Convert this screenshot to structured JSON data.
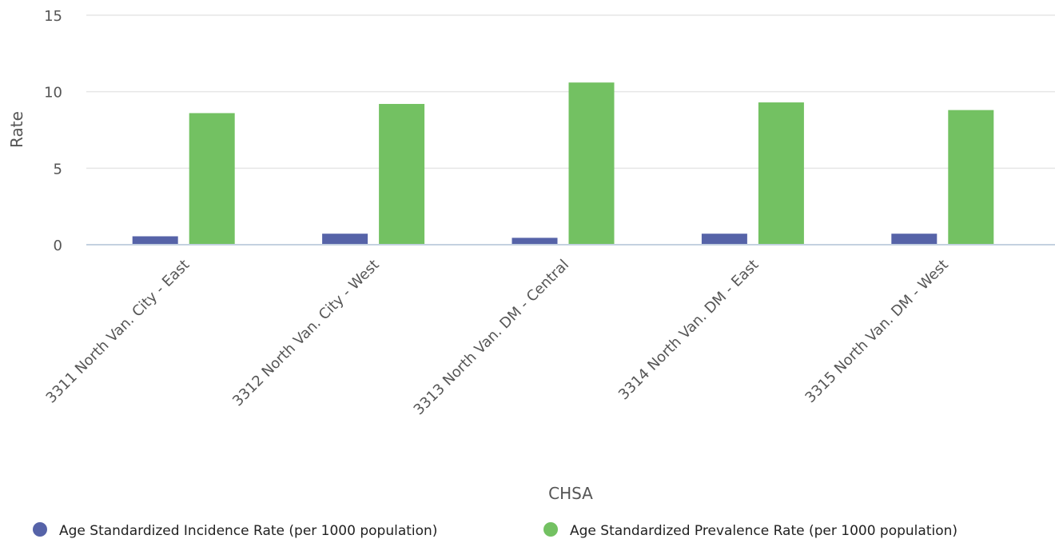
{
  "chart_data": {
    "type": "bar",
    "title": "",
    "xlabel": "CHSA",
    "ylabel": "Rate",
    "ylim": [
      0,
      15
    ],
    "yticks": [
      0,
      5,
      10,
      15
    ],
    "grid": true,
    "legend_position": "bottom",
    "categories": [
      "3311 North Van. City - East",
      "3312 North Van. City - West",
      "3313 North Van. DM - Central",
      "3314 North Van. DM - East",
      "3315 North Van. DM - West"
    ],
    "series": [
      {
        "name": "Age Standardized Incidence Rate (per 1000 population)",
        "color": "#5663a8",
        "values": [
          0.55,
          0.72,
          0.45,
          0.72,
          0.72
        ]
      },
      {
        "name": "Age Standardized Prevalence Rate (per 1000 population)",
        "color": "#73c162",
        "values": [
          8.6,
          9.2,
          10.6,
          9.3,
          8.8
        ]
      }
    ]
  }
}
